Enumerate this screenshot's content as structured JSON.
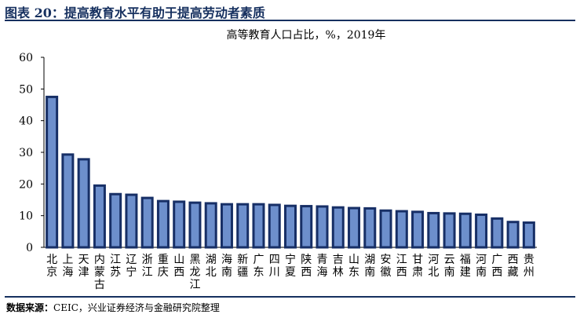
{
  "figure": {
    "title": "图表 20：提高教育水平有助于提高劳动者素质",
    "source_label": "数据来源：",
    "source_text": "CEIC，兴业证券经济与金融研究院整理"
  },
  "colors": {
    "header": "#16305f",
    "bar_fill": "#6d8fcc",
    "bar_edge": "#172f66"
  },
  "chart_data": {
    "type": "bar",
    "title": "高等教育人口占比，%，2019年",
    "xlabel": "",
    "ylabel": "",
    "ylim": [
      0,
      60
    ],
    "yticks": [
      0,
      10,
      20,
      30,
      40,
      50,
      60
    ],
    "grid": false,
    "legend": "none",
    "categories": [
      "北京",
      "上海",
      "天津",
      "内蒙古",
      "江苏",
      "辽宁",
      "浙江",
      "重庆",
      "山西",
      "黑龙江",
      "湖北",
      "海南",
      "新疆",
      "广东",
      "四川",
      "宁夏",
      "陕西",
      "青海",
      "吉林",
      "山东",
      "湖南",
      "安徽",
      "江西",
      "甘肃",
      "河北",
      "云南",
      "福建",
      "河南",
      "广西",
      "西藏",
      "贵州"
    ],
    "values": [
      47.5,
      29.3,
      27.8,
      19.5,
      16.8,
      16.6,
      15.6,
      14.6,
      14.4,
      14.1,
      13.9,
      13.6,
      13.6,
      13.6,
      13.4,
      13.1,
      13.0,
      12.9,
      12.6,
      12.4,
      12.3,
      11.6,
      11.4,
      11.2,
      10.8,
      10.7,
      10.6,
      10.3,
      9.1,
      8.0,
      7.8
    ]
  }
}
